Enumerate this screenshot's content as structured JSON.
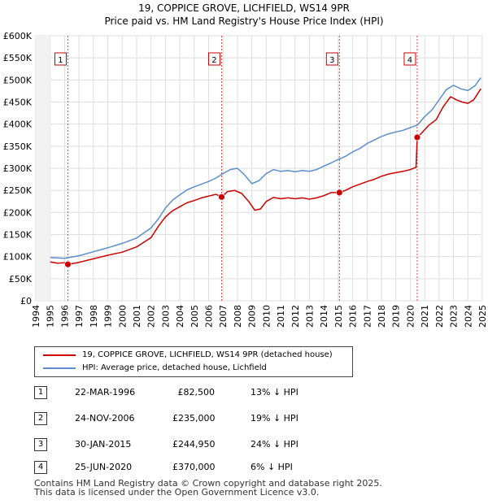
{
  "chart_data": {
    "type": "line",
    "title": "19, COPPICE GROVE, LICHFIELD, WS14 9PR",
    "subtitle": "Price paid vs. HM Land Registry's House Price Index (HPI)",
    "xlim": [
      1994,
      2025
    ],
    "ylim": [
      0,
      600000
    ],
    "yticks": [
      0,
      50000,
      100000,
      150000,
      200000,
      250000,
      300000,
      350000,
      400000,
      450000,
      500000,
      550000,
      600000
    ],
    "ytick_labels": [
      "£0",
      "£50K",
      "£100K",
      "£150K",
      "£200K",
      "£250K",
      "£300K",
      "£350K",
      "£400K",
      "£450K",
      "£500K",
      "£550K",
      "£600K"
    ],
    "xticks": [
      1994,
      1995,
      1996,
      1997,
      1998,
      1999,
      2000,
      2001,
      2002,
      2003,
      2004,
      2005,
      2006,
      2007,
      2008,
      2009,
      2010,
      2011,
      2012,
      2013,
      2014,
      2015,
      2016,
      2017,
      2018,
      2019,
      2020,
      2021,
      2022,
      2023,
      2024,
      2025
    ],
    "xtick_labels": [
      "1994",
      "1995",
      "1996",
      "1997",
      "1998",
      "1999",
      "2000",
      "2001",
      "2002",
      "2003",
      "2004",
      "2005",
      "2006",
      "2007",
      "2008",
      "2009",
      "2010",
      "2011",
      "2012",
      "2013",
      "2014",
      "2015",
      "2016",
      "2017",
      "2018",
      "2019",
      "2020",
      "2021",
      "2022",
      "2023",
      "2024",
      "2025"
    ],
    "data_start": 1995,
    "data_end": 2024.9,
    "grid": true,
    "series": [
      {
        "name": "19, COPPICE GROVE, LICHFIELD, WS14 9PR (detached house)",
        "color": "#cc0000",
        "points": [
          [
            1995.0,
            88000
          ],
          [
            1995.5,
            85000
          ],
          [
            1996.0,
            86000
          ],
          [
            1996.23,
            82500
          ],
          [
            1997.0,
            87000
          ],
          [
            1998.0,
            95000
          ],
          [
            1999.0,
            103000
          ],
          [
            2000.0,
            110000
          ],
          [
            2001.0,
            122000
          ],
          [
            2002.0,
            143000
          ],
          [
            2002.5,
            168000
          ],
          [
            2003.0,
            190000
          ],
          [
            2003.5,
            204000
          ],
          [
            2004.0,
            213000
          ],
          [
            2004.5,
            222000
          ],
          [
            2005.0,
            227000
          ],
          [
            2005.5,
            233000
          ],
          [
            2006.0,
            237000
          ],
          [
            2006.5,
            241000
          ],
          [
            2006.9,
            235000
          ],
          [
            2007.3,
            247000
          ],
          [
            2007.8,
            250000
          ],
          [
            2008.3,
            243000
          ],
          [
            2008.8,
            224000
          ],
          [
            2009.2,
            205000
          ],
          [
            2009.6,
            208000
          ],
          [
            2010.0,
            225000
          ],
          [
            2010.5,
            234000
          ],
          [
            2011.0,
            231000
          ],
          [
            2011.5,
            233000
          ],
          [
            2012.0,
            231000
          ],
          [
            2012.5,
            233000
          ],
          [
            2013.0,
            230000
          ],
          [
            2013.5,
            233000
          ],
          [
            2014.0,
            238000
          ],
          [
            2014.5,
            245000
          ],
          [
            2015.08,
            244950
          ],
          [
            2015.5,
            250000
          ],
          [
            2016.0,
            258000
          ],
          [
            2016.5,
            264000
          ],
          [
            2017.0,
            270000
          ],
          [
            2017.5,
            275000
          ],
          [
            2018.0,
            282000
          ],
          [
            2018.5,
            287000
          ],
          [
            2019.0,
            290000
          ],
          [
            2019.5,
            293000
          ],
          [
            2020.0,
            297000
          ],
          [
            2020.4,
            302000
          ],
          [
            2020.48,
            370000
          ],
          [
            2020.8,
            380000
          ],
          [
            2021.3,
            398000
          ],
          [
            2021.8,
            410000
          ],
          [
            2022.3,
            440000
          ],
          [
            2022.8,
            462000
          ],
          [
            2023.2,
            455000
          ],
          [
            2023.6,
            450000
          ],
          [
            2024.0,
            447000
          ],
          [
            2024.4,
            455000
          ],
          [
            2024.9,
            480000
          ]
        ]
      },
      {
        "name": "HPI: Average price, detached house, Lichfield",
        "color": "#5b8fcc",
        "points": [
          [
            1995.0,
            98000
          ],
          [
            1996.0,
            96000
          ],
          [
            1997.0,
            102000
          ],
          [
            1998.0,
            111000
          ],
          [
            1999.0,
            120000
          ],
          [
            2000.0,
            130000
          ],
          [
            2001.0,
            142000
          ],
          [
            2002.0,
            165000
          ],
          [
            2002.5,
            185000
          ],
          [
            2003.0,
            210000
          ],
          [
            2003.5,
            228000
          ],
          [
            2004.0,
            240000
          ],
          [
            2004.5,
            251000
          ],
          [
            2005.0,
            258000
          ],
          [
            2005.5,
            264000
          ],
          [
            2006.0,
            270000
          ],
          [
            2006.5,
            278000
          ],
          [
            2007.0,
            288000
          ],
          [
            2007.5,
            297000
          ],
          [
            2008.0,
            300000
          ],
          [
            2008.5,
            285000
          ],
          [
            2009.0,
            265000
          ],
          [
            2009.5,
            272000
          ],
          [
            2010.0,
            288000
          ],
          [
            2010.5,
            297000
          ],
          [
            2011.0,
            293000
          ],
          [
            2011.5,
            295000
          ],
          [
            2012.0,
            292000
          ],
          [
            2012.5,
            295000
          ],
          [
            2013.0,
            293000
          ],
          [
            2013.5,
            297000
          ],
          [
            2014.0,
            305000
          ],
          [
            2014.5,
            312000
          ],
          [
            2015.0,
            320000
          ],
          [
            2015.5,
            327000
          ],
          [
            2016.0,
            337000
          ],
          [
            2016.5,
            345000
          ],
          [
            2017.0,
            356000
          ],
          [
            2017.5,
            364000
          ],
          [
            2018.0,
            372000
          ],
          [
            2018.5,
            378000
          ],
          [
            2019.0,
            382000
          ],
          [
            2019.5,
            386000
          ],
          [
            2020.0,
            392000
          ],
          [
            2020.5,
            398000
          ],
          [
            2021.0,
            417000
          ],
          [
            2021.5,
            432000
          ],
          [
            2022.0,
            455000
          ],
          [
            2022.5,
            478000
          ],
          [
            2023.0,
            488000
          ],
          [
            2023.5,
            480000
          ],
          [
            2024.0,
            476000
          ],
          [
            2024.5,
            487000
          ],
          [
            2024.9,
            505000
          ]
        ]
      }
    ],
    "sales": [
      {
        "num": "1",
        "x": 1996.23,
        "price": 82500,
        "date": "22-MAR-1996",
        "price_label": "£82,500",
        "hpi_label": "13% ↓ HPI"
      },
      {
        "num": "2",
        "x": 2006.9,
        "price": 235000,
        "date": "24-NOV-2006",
        "price_label": "£235,000",
        "hpi_label": "19% ↓ HPI"
      },
      {
        "num": "3",
        "x": 2015.08,
        "price": 244950,
        "date": "30-JAN-2015",
        "price_label": "£244,950",
        "hpi_label": "24% ↓ HPI"
      },
      {
        "num": "4",
        "x": 2020.48,
        "price": 370000,
        "date": "25-JUN-2020",
        "price_label": "£370,000",
        "hpi_label": "6% ↓ HPI"
      }
    ],
    "legend": {
      "position": "below",
      "entries": [
        "19, COPPICE GROVE, LICHFIELD, WS14 9PR (detached house)",
        "HPI: Average price, detached house, Lichfield"
      ]
    }
  },
  "footer": {
    "line1": "Contains HM Land Registry data © Crown copyright and database right 2025.",
    "line2": "This data is licensed under the Open Government Licence v3.0."
  }
}
